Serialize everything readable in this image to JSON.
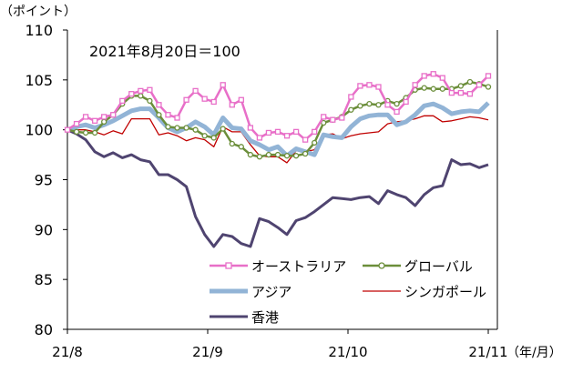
{
  "chart_data": {
    "type": "line",
    "title": "",
    "annotation": "2021年8月20日＝100",
    "ylabel": "（ポイント）",
    "xlabel": "（年/月）",
    "ylim": [
      80,
      110
    ],
    "y_ticks": [
      80,
      85,
      90,
      95,
      100,
      105,
      110
    ],
    "x_ticks": [
      "21/8",
      "21/9",
      "21/10",
      "21/11"
    ],
    "grid": false,
    "legend_placement": "bottom-right",
    "series": [
      {
        "name": "オーストラリア",
        "color": "#e86fc8",
        "marker": "square",
        "values": [
          100,
          100.6,
          101.3,
          100.9,
          101.3,
          101.5,
          102.9,
          103.6,
          103.9,
          104,
          102.5,
          101.5,
          101.2,
          103,
          103.9,
          103.1,
          102.8,
          104.5,
          102.5,
          103,
          100.2,
          99.2,
          99.7,
          99.8,
          99.4,
          99.8,
          99,
          99.8,
          101.3,
          101,
          101.2,
          103.3,
          104.4,
          104.5,
          104.3,
          102.5,
          101.8,
          102.8,
          104.5,
          105.4,
          105.6,
          105.2,
          103.7,
          103.7,
          103.6,
          104.5,
          105.4
        ]
      },
      {
        "name": "グローバル",
        "color": "#6b8e3a",
        "marker": "circle",
        "values": [
          100,
          99.8,
          99.7,
          99.7,
          100.8,
          101.5,
          102.6,
          103.4,
          103.4,
          102.9,
          101.5,
          100.3,
          100.2,
          100.2,
          100,
          99.4,
          99.2,
          100.1,
          98.6,
          98.3,
          97.5,
          97.3,
          97.5,
          97.5,
          97.4,
          97.4,
          97.6,
          98.7,
          100.7,
          101,
          101.3,
          102,
          102.4,
          102.6,
          102.5,
          102.9,
          102.6,
          103.2,
          104,
          104.2,
          104.1,
          104.1,
          104.1,
          104.4,
          104.8,
          104.6,
          104.3
        ]
      },
      {
        "name": "アジア",
        "color": "#92b4d6",
        "marker": "none",
        "values": [
          100,
          100.3,
          100.5,
          100.2,
          100.5,
          100.9,
          101.4,
          101.9,
          102.1,
          102.1,
          101.2,
          100.2,
          99.8,
          100.2,
          100.8,
          100.3,
          99.5,
          101.2,
          100.2,
          100.1,
          98.9,
          98.5,
          98,
          98.3,
          97.4,
          98.1,
          97.8,
          97.5,
          99.5,
          99.3,
          99.2,
          100.3,
          101.1,
          101.4,
          101.5,
          101.5,
          100.5,
          100.8,
          101.5,
          102.4,
          102.6,
          102.2,
          101.6,
          101.8,
          101.9,
          101.8,
          102.7
        ]
      },
      {
        "name": "シンガポール",
        "color": "#c00000",
        "marker": "none",
        "values": [
          100,
          100,
          100,
          99.8,
          99.5,
          99.9,
          99.6,
          101.1,
          101.1,
          101.1,
          99.5,
          99.7,
          99.4,
          98.9,
          99.2,
          99,
          98.3,
          100.3,
          99.8,
          99.8,
          98.5,
          97.4,
          97.3,
          97.3,
          96.7,
          97.9,
          97.8,
          98,
          99.5,
          99.6,
          99.1,
          99.4,
          99.6,
          99.7,
          99.8,
          100.6,
          100.8,
          100.9,
          101.1,
          101.4,
          101.4,
          100.8,
          100.9,
          101.1,
          101.3,
          101.2,
          101
        ]
      },
      {
        "name": "香港",
        "color": "#4f4470",
        "marker": "none",
        "values": [
          100,
          99.6,
          99,
          97.8,
          97.3,
          97.7,
          97.2,
          97.5,
          97,
          96.8,
          95.5,
          95.5,
          95,
          94.3,
          91.3,
          89.5,
          88.3,
          89.5,
          89.3,
          88.6,
          88.3,
          91.1,
          90.8,
          90.2,
          89.5,
          90.9,
          91.2,
          91.8,
          92.5,
          93.2,
          93.1,
          93,
          93.2,
          93.3,
          92.6,
          93.9,
          93.5,
          93.2,
          92.4,
          93.5,
          94.2,
          94.4,
          97,
          96.5,
          96.6,
          96.2,
          96.5
        ]
      }
    ]
  }
}
